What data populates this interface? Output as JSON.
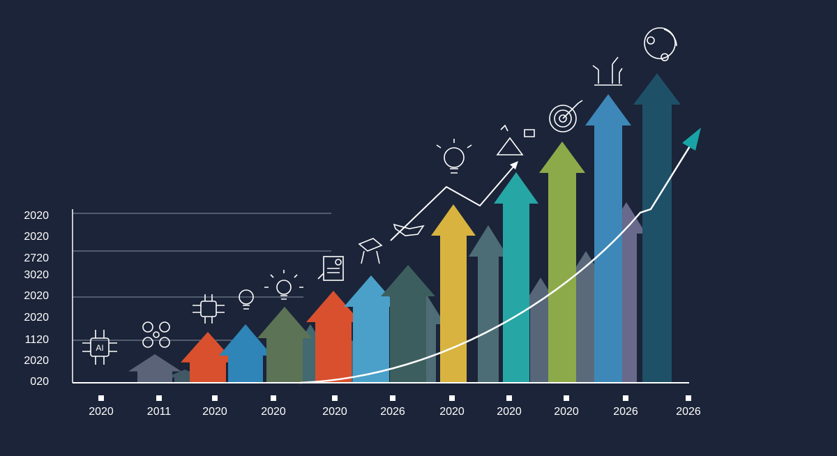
{
  "y_axis_labels": [
    "2020",
    "2020",
    "2720",
    "3020",
    "2020",
    "2020",
    "1120",
    "2020",
    "020"
  ],
  "x_axis_labels": [
    "2020",
    "2011",
    "2020",
    "2020",
    "2020",
    "2026",
    "2020",
    "2020",
    "2020",
    "2026",
    "2026"
  ],
  "icon_text": "AI"
}
